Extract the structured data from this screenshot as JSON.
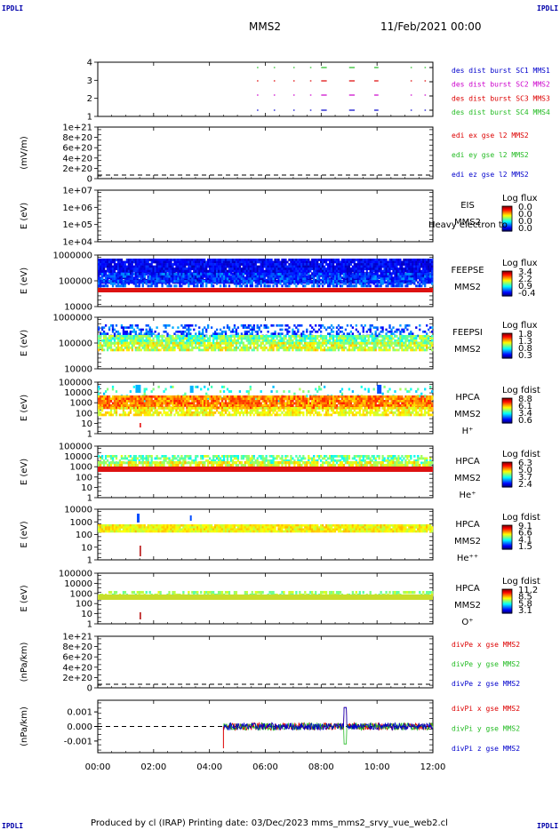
{
  "corners": {
    "tl": "IPDLI",
    "tr": "IPDLI",
    "bl": "IPDLI",
    "br": "IPDLI"
  },
  "header": {
    "mission": "MMS2",
    "date": "11/Feb/2021 00:00"
  },
  "footer": "Produced by cl (IRAP)   Printing date: 03/Dec/2023   mms_mms2_srvy_vue_web2.cl",
  "colors": {
    "red": "#dd0000",
    "green": "#22bb22",
    "blue": "#0000cc",
    "magenta": "#cc00cc"
  },
  "chart_data": [
    {
      "type": "scatter",
      "id": "burst",
      "y_ticks": [
        "4",
        "3",
        "2",
        "1"
      ],
      "legend": [
        {
          "label": "des dist burst SC1 MMS1",
          "color": "#0000cc"
        },
        {
          "label": "des dist burst SC2 MMS2",
          "color": "#cc00cc"
        },
        {
          "label": "des dist burst SC3 MMS3",
          "color": "#dd0000"
        },
        {
          "label": "des dist burst SC4 MMS4",
          "color": "#22bb22"
        }
      ],
      "segments_hours": [
        {
          "start": 5.7,
          "end": 5.75
        },
        {
          "start": 6.3,
          "end": 6.35
        },
        {
          "start": 7.0,
          "end": 7.05
        },
        {
          "start": 7.6,
          "end": 7.65
        },
        {
          "start": 8.0,
          "end": 8.2
        },
        {
          "start": 9.0,
          "end": 9.2
        },
        {
          "start": 9.9,
          "end": 10.05
        },
        {
          "start": 11.2,
          "end": 11.25
        },
        {
          "start": 11.7,
          "end": 11.75
        }
      ]
    },
    {
      "type": "line",
      "id": "edi",
      "ylabel": "(mV/m)",
      "y_ticks": [
        "1e+21",
        "8e+20",
        "6e+20",
        "4e+20",
        "2e+20",
        "0"
      ],
      "legend": [
        {
          "label": "edi ex gse l2 MMS2",
          "color": "#dd0000"
        },
        {
          "label": "edi ey gse l2 MMS2",
          "color": "#22bb22"
        },
        {
          "label": "edi ez gse l2 MMS2",
          "color": "#0000cc"
        }
      ]
    },
    {
      "type": "heatmap",
      "id": "eis",
      "ylabel": "E (eV)",
      "y_ticks": [
        "1e+07",
        "1e+06",
        "1e+05",
        "1e+04"
      ],
      "side": [
        "EIS",
        "MMS2"
      ],
      "overlay": "Heavy electron to",
      "colorbar": {
        "title": "Log flux",
        "labels": [
          "0.0",
          "0.0",
          "0.0",
          "0.0"
        ]
      }
    },
    {
      "type": "heatmap",
      "id": "feepse",
      "ylabel": "E (eV)",
      "y_ticks": [
        "1000000",
        "100000",
        "10000"
      ],
      "side": [
        "FEEPSE",
        "MMS2"
      ],
      "colorbar": {
        "title": "Log flux",
        "labels": [
          "3.4",
          "2.2",
          "0.9",
          "-0.4"
        ]
      }
    },
    {
      "type": "heatmap",
      "id": "feepsi",
      "ylabel": "E (eV)",
      "y_ticks": [
        "1000000",
        "100000",
        "10000"
      ],
      "side": [
        "FEEPSI",
        "MMS2"
      ],
      "colorbar": {
        "title": "Log flux",
        "labels": [
          "1.8",
          "1.3",
          "0.8",
          "0.3"
        ]
      }
    },
    {
      "type": "heatmap",
      "id": "hpca_h",
      "ylabel": "E (eV)",
      "y_ticks": [
        "100000",
        "10000",
        "1000",
        "100",
        "10",
        "1"
      ],
      "side": [
        "HPCA",
        "MMS2",
        "H⁺"
      ],
      "colorbar": {
        "title": "Log fdist",
        "labels": [
          "8.8",
          "6.1",
          "3.4",
          "0.6"
        ]
      }
    },
    {
      "type": "heatmap",
      "id": "hpca_he",
      "ylabel": "E (eV)",
      "y_ticks": [
        "100000",
        "10000",
        "1000",
        "100",
        "10",
        "1"
      ],
      "side": [
        "HPCA",
        "MMS2",
        "He⁺"
      ],
      "colorbar": {
        "title": "Log fdist",
        "labels": [
          "6.3",
          "5.0",
          "3.7",
          "2.4"
        ]
      }
    },
    {
      "type": "heatmap",
      "id": "hpca_hepp",
      "ylabel": "E (eV)",
      "y_ticks": [
        "10000",
        "1000",
        "100",
        "10",
        "1"
      ],
      "side": [
        "HPCA",
        "MMS2",
        "He⁺⁺"
      ],
      "colorbar": {
        "title": "Log fdist",
        "labels": [
          "9.1",
          "6.6",
          "4.1",
          "1.5"
        ]
      }
    },
    {
      "type": "heatmap",
      "id": "hpca_o",
      "ylabel": "E (eV)",
      "y_ticks": [
        "100000",
        "10000",
        "1000",
        "100",
        "10",
        "1"
      ],
      "side": [
        "HPCA",
        "MMS2",
        "O⁺"
      ],
      "colorbar": {
        "title": "Log fdist",
        "labels": [
          "11.2",
          "8.5",
          "5.8",
          "3.1"
        ]
      }
    },
    {
      "type": "line",
      "id": "divpe",
      "ylabel": "(nPa/km)",
      "y_ticks": [
        "1e+21",
        "8e+20",
        "6e+20",
        "4e+20",
        "2e+20",
        "0"
      ],
      "legend": [
        {
          "label": "divPe x gse MMS2",
          "color": "#dd0000"
        },
        {
          "label": "divPe y gse MMS2",
          "color": "#22bb22"
        },
        {
          "label": "divPe z gse MMS2",
          "color": "#0000cc"
        }
      ]
    },
    {
      "type": "line",
      "id": "divpi",
      "ylabel": "(nPa/km)",
      "y_ticks": [
        "0.001",
        "0.000",
        "-0.001"
      ],
      "ylim": [
        -0.0018,
        0.0018
      ],
      "data_start_hour": 4.5,
      "noise_amplitude": 0.00025,
      "spike": {
        "hour": 8.85,
        "min": -0.0012,
        "max": 0.0013
      },
      "legend": [
        {
          "label": "divPi x gse MMS2",
          "color": "#dd0000"
        },
        {
          "label": "divPi y gse MMS2",
          "color": "#22bb22"
        },
        {
          "label": "divPi z gse MMS2",
          "color": "#0000cc"
        }
      ]
    }
  ],
  "x_ticks": [
    "00:00",
    "02:00",
    "04:00",
    "06:00",
    "08:00",
    "10:00",
    "12:00"
  ],
  "x_range_hours": [
    0,
    12
  ]
}
